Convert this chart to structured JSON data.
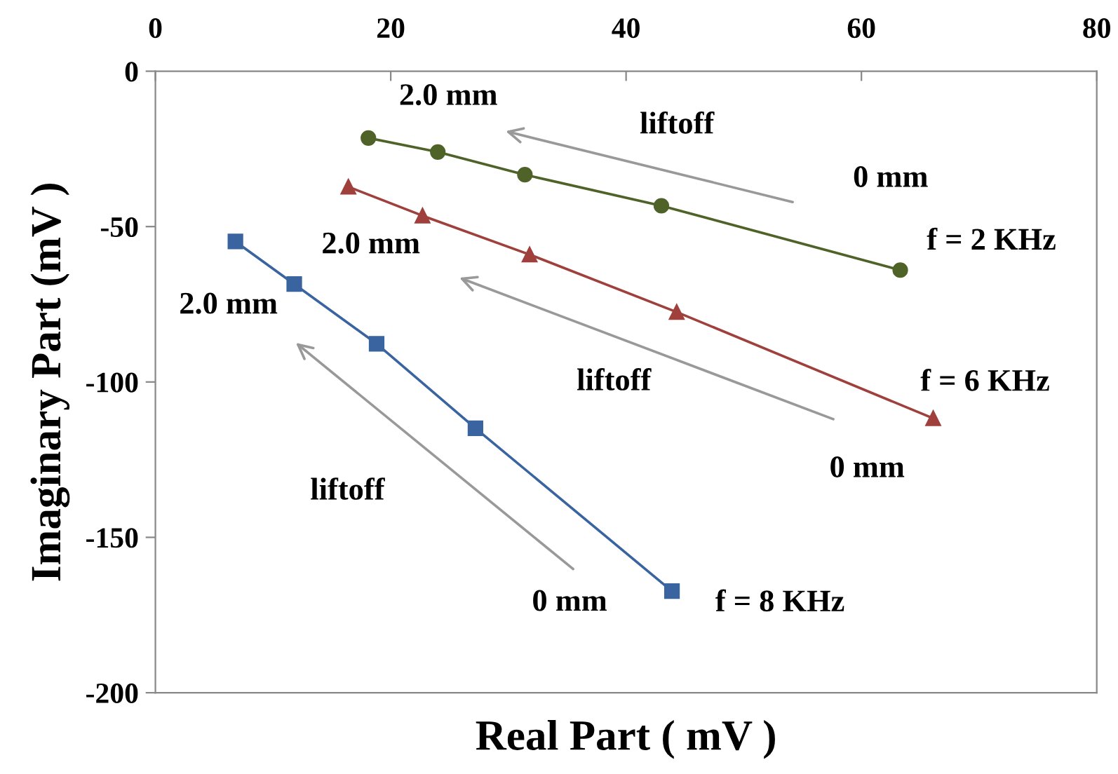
{
  "chart_data": {
    "type": "line",
    "xlabel": "Real Part ( mV )",
    "ylabel": "Imaginary Part (mV )",
    "xlim": [
      0,
      80
    ],
    "xticks": [
      0,
      20,
      40,
      60,
      80
    ],
    "ylim": [
      -200,
      0
    ],
    "yticks": [
      -200,
      -150,
      -100,
      -50,
      0
    ],
    "grid": false,
    "legend": false,
    "line_style": "solid",
    "series": [
      {
        "color": "#4f6228",
        "marker": "circle",
        "x": [
          18.1,
          24.0,
          31.4,
          43.0,
          63.3
        ],
        "values": [
          -21.5,
          -26.0,
          -33.3,
          -43.3,
          -64.0
        ]
      },
      {
        "color": "#a0403c",
        "marker": "triangle",
        "x": [
          16.4,
          22.7,
          31.8,
          44.3,
          66.1
        ],
        "values": [
          -37.2,
          -46.5,
          -59.0,
          -77.5,
          -111.7
        ]
      },
      {
        "color": "#3a64a0",
        "marker": "square",
        "x": [
          6.8,
          11.8,
          18.8,
          27.2,
          43.9
        ],
        "values": [
          -54.8,
          -68.5,
          -87.7,
          -114.9,
          -167.3
        ]
      }
    ],
    "annotations": [
      {
        "text": "2.0 mm",
        "x": 18.1,
        "y": -21.5
      },
      {
        "text": "f = 2 KHz",
        "x": 63.3,
        "y": -64.0
      },
      {
        "text": "2.0 mm",
        "x": 16.4,
        "y": -37.2
      },
      {
        "text": "f = 6 KHz",
        "x": 66.1,
        "y": -111.7
      },
      {
        "text": "2.0 mm",
        "x": 6.8,
        "y": -54.8
      },
      {
        "text": "f = 8 KHz",
        "x": 43.9,
        "y": -167.3
      },
      "0 mm",
      "0 mm",
      "0 mm",
      "liftoff",
      "liftoff",
      "liftoff"
    ]
  }
}
